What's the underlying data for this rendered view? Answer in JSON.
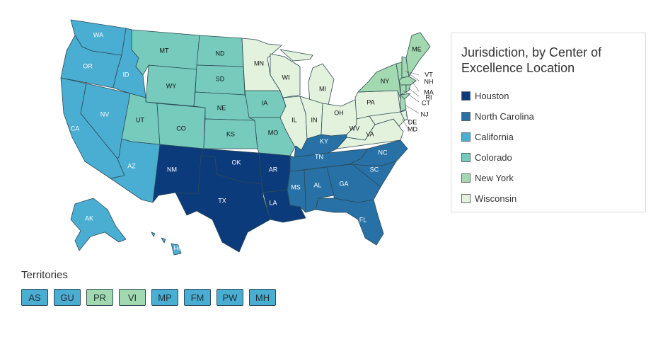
{
  "legend": {
    "title": "Jurisdiction, by Center of Excellence Location",
    "items": [
      {
        "key": "houston",
        "label": "Houston",
        "color": "#0b3b7a"
      },
      {
        "key": "nc",
        "label": "North Carolina",
        "color": "#2771a6"
      },
      {
        "key": "ca",
        "label": "California",
        "color": "#4aadd2"
      },
      {
        "key": "co",
        "label": "Colorado",
        "color": "#77cbbd"
      },
      {
        "key": "ny",
        "label": "New York",
        "color": "#a3d9b0"
      },
      {
        "key": "wi",
        "label": "Wisconsin",
        "color": "#e3f2dd"
      }
    ]
  },
  "map": {
    "states": {
      "WA": "ca",
      "OR": "ca",
      "CA": "ca",
      "NV": "ca",
      "ID": "ca",
      "AZ": "ca",
      "AK": "ca",
      "HI": "ca",
      "MT": "co",
      "WY": "co",
      "UT": "co",
      "CO": "co",
      "ND": "co",
      "SD": "co",
      "NE": "co",
      "KS": "co",
      "IA": "co",
      "MO": "co",
      "MN": "wi",
      "WI": "wi",
      "MI": "wi",
      "IL": "wi",
      "IN": "wi",
      "OH": "wi",
      "PA": "wi",
      "WV": "wi",
      "VA": "wi",
      "MD": "wi",
      "DE": "wi",
      "DC": "wi",
      "NM": "houston",
      "TX": "houston",
      "OK": "houston",
      "AR": "houston",
      "LA": "houston",
      "KY": "nc",
      "TN": "nc",
      "MS": "nc",
      "AL": "nc",
      "GA": "nc",
      "FL": "nc",
      "SC": "nc",
      "NC": "nc",
      "NY": "ny",
      "NJ": "ny",
      "CT": "ny",
      "RI": "ny",
      "MA": "ny",
      "VT": "ny",
      "NH": "ny",
      "ME": "ny"
    },
    "labels": [
      "WA",
      "OR",
      "CA",
      "NV",
      "ID",
      "MT",
      "WY",
      "UT",
      "AZ",
      "CO",
      "NM",
      "ND",
      "SD",
      "NE",
      "KS",
      "OK",
      "TX",
      "MN",
      "IA",
      "MO",
      "AR",
      "LA",
      "WI",
      "IL",
      "MI",
      "IN",
      "OH",
      "KY",
      "TN",
      "MS",
      "AL",
      "GA",
      "FL",
      "SC",
      "NC",
      "VA",
      "WV",
      "PA",
      "NY",
      "ME",
      "VT",
      "NH",
      "MA",
      "RI",
      "CT",
      "NJ",
      "DE",
      "MD",
      "AK",
      "HI"
    ]
  },
  "territories": {
    "title": "Territories",
    "items": [
      {
        "code": "AS",
        "group": "ca"
      },
      {
        "code": "GU",
        "group": "ca"
      },
      {
        "code": "PR",
        "group": "ny"
      },
      {
        "code": "VI",
        "group": "ny"
      },
      {
        "code": "MP",
        "group": "ca"
      },
      {
        "code": "FM",
        "group": "ca"
      },
      {
        "code": "PW",
        "group": "ca"
      },
      {
        "code": "MH",
        "group": "ca"
      }
    ]
  }
}
